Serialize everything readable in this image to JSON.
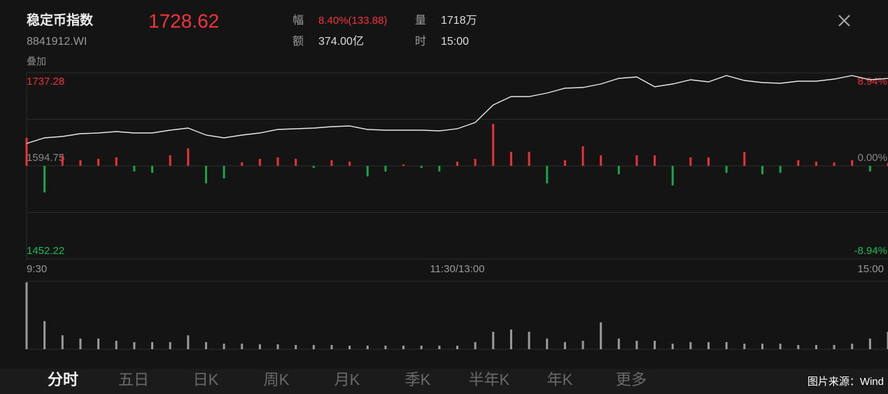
{
  "header": {
    "title": "稳定币指数",
    "code": "8841912.WI",
    "price": "1728.62",
    "stats": [
      {
        "label": "幅",
        "value": "8.40%(133.88)"
      },
      {
        "label": "量",
        "value": "1718万"
      },
      {
        "label": "额",
        "value": "374.00亿"
      },
      {
        "label": "时",
        "value": "15:00"
      }
    ],
    "overlay": "叠加"
  },
  "chart_data": {
    "type": "line",
    "color": "#e6e6e6",
    "up_color": "#e8333a",
    "down_color": "#1aa34a",
    "volume_color": "#9a9a9a",
    "x": [
      0,
      5,
      10,
      15,
      20,
      25,
      30,
      35,
      40,
      45,
      50,
      55,
      60,
      65,
      70,
      75,
      80,
      85,
      90,
      95,
      100,
      105,
      110,
      115,
      120,
      125,
      130,
      135,
      140,
      145,
      150,
      155,
      160,
      165,
      170,
      175,
      180,
      185,
      190,
      195,
      200,
      205,
      210,
      215,
      220,
      225,
      230,
      235,
      240
    ],
    "values": [
      1629.0,
      1637.6,
      1639.8,
      1644.0,
      1645.1,
      1647.3,
      1645.1,
      1645.1,
      1649.4,
      1652.6,
      1641.9,
      1637.6,
      1641.9,
      1645.1,
      1650.5,
      1651.5,
      1652.6,
      1654.8,
      1655.8,
      1650.5,
      1649.4,
      1649.4,
      1649.4,
      1648.3,
      1651.5,
      1661.2,
      1688.0,
      1700.8,
      1700.8,
      1706.2,
      1713.7,
      1714.8,
      1720.1,
      1728.7,
      1730.8,
      1715.8,
      1720.1,
      1726.6,
      1723.3,
      1733.0,
      1725.5,
      1722.3,
      1721.2,
      1724.4,
      1724.4,
      1727.6,
      1733.0,
      1726.6,
      1728.6
    ],
    "change": [
      42.9,
      -40.7,
      16.1,
      8.6,
      10.7,
      12.9,
      -8.6,
      -10.7,
      16.1,
      26.8,
      -26.8,
      -19.3,
      5.4,
      10.7,
      12.9,
      10.7,
      -3.2,
      8.6,
      6.4,
      -16.1,
      -8.6,
      2.1,
      -3.2,
      -8.6,
      6.4,
      10.7,
      64.3,
      21.4,
      21.4,
      -26.8,
      8.6,
      30.0,
      16.1,
      -12.9,
      16.1,
      16.1,
      -30.0,
      12.9,
      12.9,
      -10.7,
      21.4,
      -12.9,
      -10.7,
      8.6,
      6.4,
      5.4,
      8.6,
      -8.6,
      4.3
    ],
    "volume": [
      20.7,
      8.7,
      4.3,
      3.3,
      3.3,
      2.6,
      2.2,
      2.2,
      2.2,
      4.3,
      2.2,
      1.7,
      1.7,
      1.5,
      1.5,
      1.3,
      1.3,
      1.3,
      1.1,
      1.1,
      1.1,
      1.1,
      1.1,
      1.1,
      1.1,
      2.2,
      5.4,
      6.1,
      5.4,
      3.3,
      2.2,
      2.6,
      8.3,
      3.3,
      2.6,
      2.6,
      1.7,
      2.2,
      2.2,
      2.2,
      1.7,
      1.7,
      1.7,
      1.3,
      1.3,
      1.3,
      1.7,
      3.3,
      5.4
    ],
    "volume_ylim": [
      0,
      21
    ],
    "xlim": [
      0,
      240
    ],
    "xticks": [
      {
        "value": 0,
        "label": "9:30"
      },
      {
        "value": 120,
        "label": "11:30/13:00"
      },
      {
        "value": 240,
        "label": "15:00"
      }
    ],
    "ylim": [
      1452.22,
      1737.28
    ],
    "yticks": [
      1737.28,
      1594.75,
      1452.22
    ],
    "y2lim": [
      -8.94,
      8.94
    ],
    "y2ticks": [
      {
        "value": 8.94,
        "label": "8.94%"
      },
      {
        "value": 0,
        "label": "0.00%"
      },
      {
        "value": -8.94,
        "label": "-8.94%"
      }
    ]
  },
  "tabs": [
    "分时",
    "五日",
    "日K",
    "周K",
    "月K",
    "季K",
    "半年K",
    "年K",
    "更多"
  ],
  "source": "图片来源：Wind"
}
